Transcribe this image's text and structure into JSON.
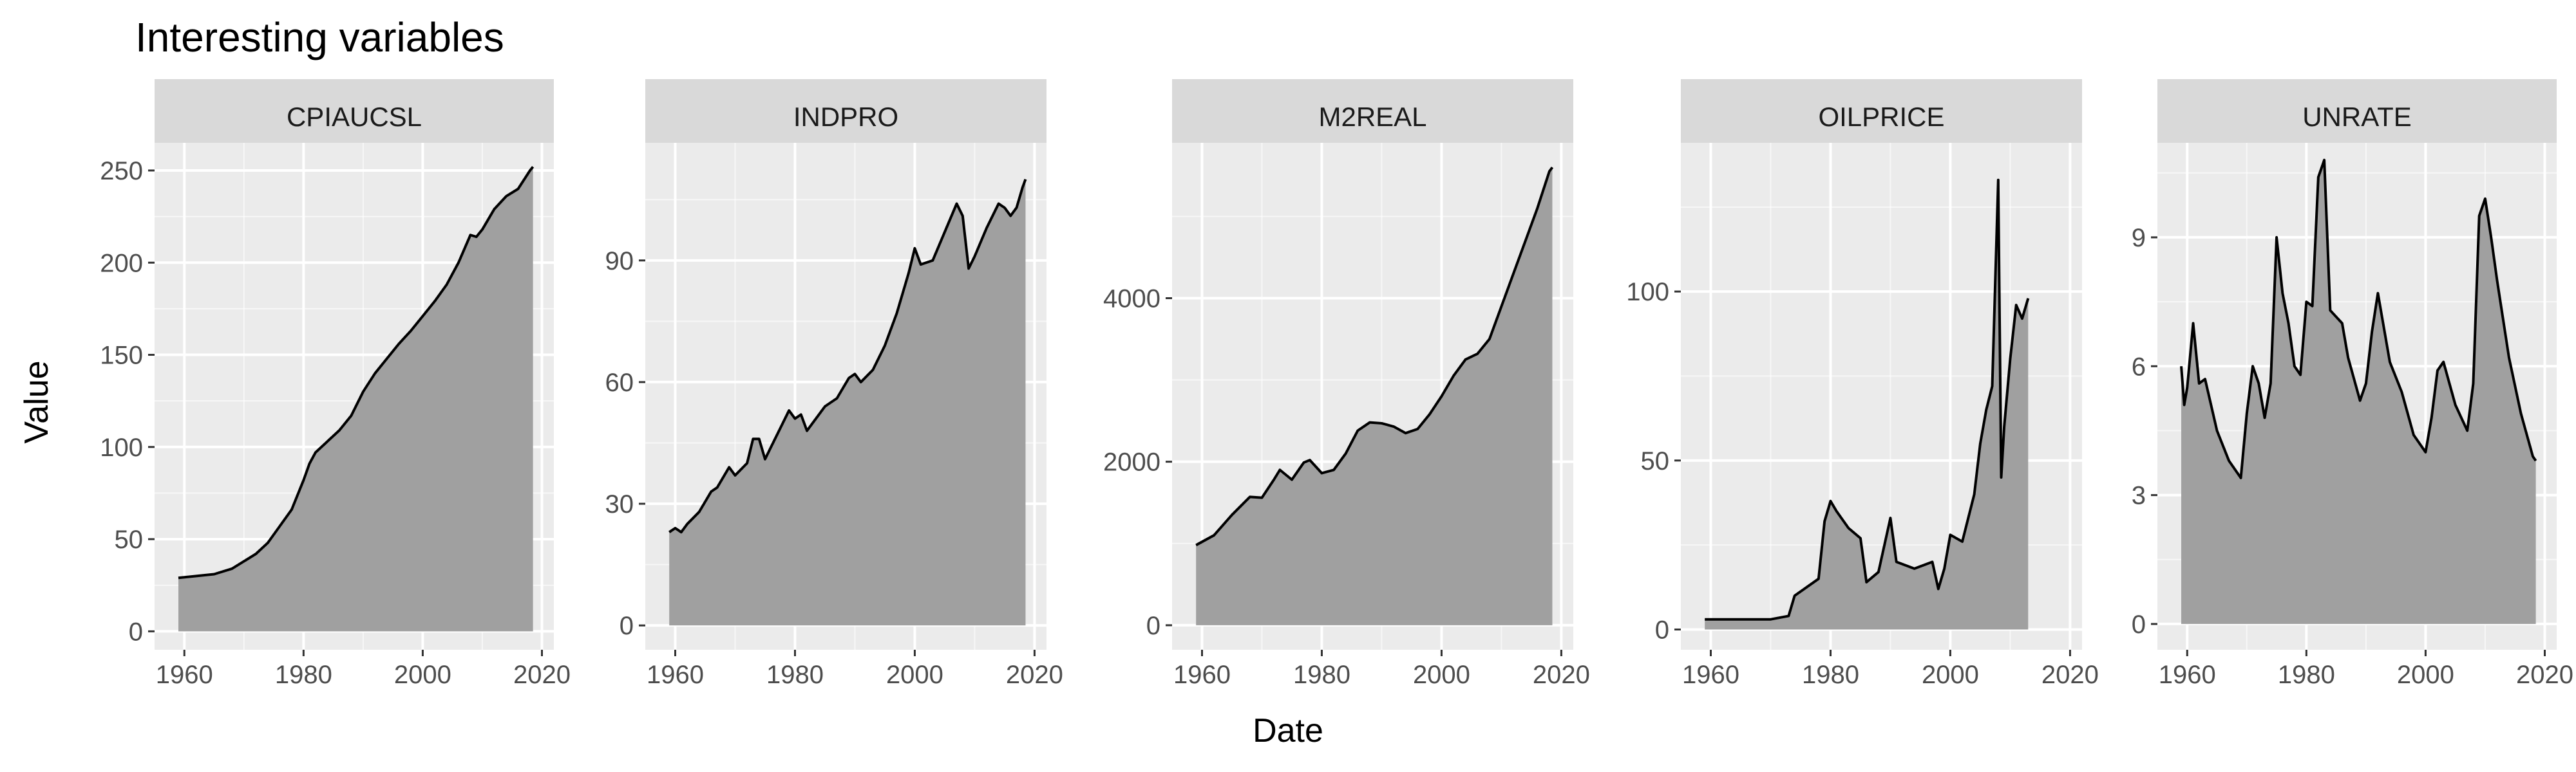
{
  "chart_data": {
    "type": "area",
    "title": "Interesting variables",
    "xlabel": "Date",
    "ylabel": "Value",
    "grid": true,
    "legend": "none",
    "colors": {
      "panel_bg": "#ebebeb",
      "grid": "#ffffff",
      "strip_bg": "#d9d9d9",
      "area_fill": "#a0a0a0",
      "line": "#000000",
      "tick_text": "#4d4d4d"
    },
    "xlim": [
      1955,
      2022
    ],
    "xticks": [
      1960,
      1980,
      2000,
      2020
    ],
    "facets": [
      {
        "name": "CPIAUCSL",
        "ylim": [
          -10,
          265
        ],
        "yticks": [
          0,
          50,
          100,
          150,
          200,
          250
        ],
        "x": [
          1959,
          1962,
          1965,
          1968,
          1970,
          1972,
          1974,
          1976,
          1978,
          1980,
          1981,
          1982,
          1984,
          1986,
          1988,
          1990,
          1992,
          1994,
          1996,
          1998,
          2000,
          2002,
          2004,
          2006,
          2008,
          2009,
          2010,
          2012,
          2014,
          2016,
          2018,
          2018.5
        ],
        "y": [
          29,
          30,
          31,
          34,
          38,
          42,
          48,
          57,
          66,
          82,
          91,
          97,
          103,
          109,
          117,
          130,
          140,
          148,
          156,
          163,
          171,
          179,
          188,
          200,
          215,
          214,
          218,
          229,
          236,
          240,
          250,
          252
        ]
      },
      {
        "name": "INDPRO",
        "ylim": [
          -6,
          119
        ],
        "yticks": [
          0,
          30,
          60,
          90
        ],
        "x": [
          1959,
          1960,
          1961,
          1962,
          1964,
          1966,
          1967,
          1969,
          1970,
          1972,
          1973,
          1974,
          1975,
          1976,
          1978,
          1979,
          1980,
          1981,
          1982,
          1983,
          1985,
          1987,
          1989,
          1990,
          1991,
          1993,
          1995,
          1997,
          1999,
          2000,
          2001,
          2003,
          2005,
          2007,
          2008,
          2009,
          2010,
          2012,
          2014,
          2015,
          2016,
          2017,
          2018,
          2018.5
        ],
        "y": [
          23,
          24,
          23,
          25,
          28,
          33,
          34,
          39,
          37,
          40,
          46,
          46,
          41,
          44,
          50,
          53,
          51,
          52,
          48,
          50,
          54,
          56,
          61,
          62,
          60,
          63,
          69,
          77,
          87,
          93,
          89,
          90,
          97,
          104,
          101,
          88,
          91,
          98,
          104,
          103,
          101,
          103,
          108,
          110
        ]
      },
      {
        "name": "M2REAL",
        "ylim": [
          -300,
          5900
        ],
        "yticks": [
          0,
          2000,
          4000
        ],
        "x": [
          1959,
          1962,
          1965,
          1968,
          1970,
          1972,
          1973,
          1975,
          1977,
          1978,
          1980,
          1982,
          1984,
          1986,
          1988,
          1990,
          1992,
          1994,
          1996,
          1998,
          2000,
          2002,
          2004,
          2006,
          2008,
          2010,
          2012,
          2014,
          2016,
          2018,
          2018.5
        ],
        "y": [
          980,
          1100,
          1350,
          1570,
          1560,
          1780,
          1900,
          1780,
          1990,
          2020,
          1860,
          1900,
          2100,
          2380,
          2480,
          2470,
          2430,
          2350,
          2400,
          2580,
          2800,
          3050,
          3250,
          3320,
          3500,
          3900,
          4300,
          4700,
          5100,
          5550,
          5600
        ]
      },
      {
        "name": "OILPRICE",
        "ylim": [
          -6,
          144
        ],
        "yticks": [
          0,
          50,
          100
        ],
        "x": [
          1959,
          1965,
          1970,
          1973,
          1974,
          1978,
          1979,
          1980,
          1981,
          1983,
          1985,
          1986,
          1988,
          1990,
          1991,
          1994,
          1997,
          1998,
          1999,
          2000,
          2002,
          2004,
          2005,
          2006,
          2007,
          2008,
          2008.5,
          2009,
          2010,
          2011,
          2012,
          2013
        ],
        "y": [
          3,
          3,
          3,
          4,
          10,
          15,
          32,
          38,
          35,
          30,
          27,
          14,
          17,
          33,
          20,
          18,
          20,
          12,
          18,
          28,
          26,
          40,
          55,
          65,
          72,
          133,
          45,
          60,
          80,
          96,
          92,
          98
        ]
      },
      {
        "name": "UNRATE",
        "ylim": [
          -0.6,
          11.2
        ],
        "yticks": [
          0,
          3,
          6,
          9
        ],
        "x": [
          1959,
          1959.5,
          1960,
          1961,
          1962,
          1963,
          1965,
          1967,
          1968,
          1969,
          1970,
          1971,
          1972,
          1973,
          1974,
          1975,
          1976,
          1977,
          1978,
          1979,
          1980,
          1981,
          1982,
          1983,
          1984,
          1986,
          1987,
          1989,
          1990,
          1991,
          1992,
          1994,
          1996,
          1998,
          2000,
          2001,
          2002,
          2003,
          2005,
          2007,
          2008,
          2009,
          2010,
          2011,
          2012,
          2014,
          2016,
          2017,
          2018,
          2018.5
        ],
        "y": [
          6.0,
          5.1,
          5.5,
          7.0,
          5.6,
          5.7,
          4.5,
          3.8,
          3.6,
          3.4,
          4.9,
          6.0,
          5.6,
          4.8,
          5.6,
          9.0,
          7.7,
          7.0,
          6.0,
          5.8,
          7.5,
          7.4,
          10.4,
          10.8,
          7.3,
          7.0,
          6.2,
          5.2,
          5.6,
          6.8,
          7.7,
          6.1,
          5.4,
          4.4,
          4.0,
          4.8,
          5.9,
          6.1,
          5.1,
          4.5,
          5.6,
          9.5,
          9.9,
          9.0,
          8.0,
          6.2,
          4.9,
          4.4,
          3.9,
          3.8
        ]
      }
    ]
  }
}
